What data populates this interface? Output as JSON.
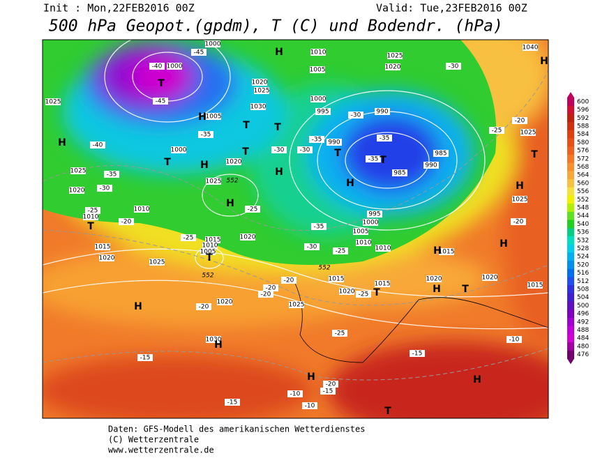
{
  "header": {
    "init": "Init : Mon,22FEB2016 00Z",
    "valid": "Valid: Tue,23FEB2016 00Z",
    "title": "500 hPa Geopot.(gpdm), T (C) und Bodendr. (hPa)"
  },
  "footer": {
    "source": "Daten: GFS-Modell des amerikanischen Wetterdienstes",
    "copyright": "(C) Wetterzentrale",
    "url": "www.wetterzentrale.de"
  },
  "colorbar": {
    "labels": [
      "600",
      "596",
      "592",
      "588",
      "584",
      "580",
      "576",
      "572",
      "568",
      "564",
      "560",
      "556",
      "552",
      "548",
      "544",
      "540",
      "536",
      "532",
      "528",
      "524",
      "520",
      "516",
      "512",
      "508",
      "504",
      "500",
      "496",
      "492",
      "488",
      "484",
      "480",
      "476"
    ]
  },
  "map": {
    "pressure_labels": [
      "1000",
      "1000",
      "1010",
      "1025",
      "1020",
      "1040",
      "1005",
      "1020",
      "1025",
      "1030",
      "1000",
      "995",
      "990",
      "1025",
      "1005",
      "1025",
      "990",
      "985",
      "990",
      "985",
      "1000",
      "1020",
      "1025",
      "1025",
      "1020",
      "1010",
      "1010",
      "1015",
      "1020",
      "1020",
      "1015",
      "1010",
      "1005",
      "995",
      "1000",
      "1005",
      "1010",
      "1010",
      "1015",
      "1025",
      "1015",
      "1020",
      "1015",
      "1020",
      "1020",
      "1015",
      "1020",
      "1025",
      "1030",
      "1025"
    ],
    "temperature_labels": [
      "-45",
      "-40",
      "-45",
      "-35",
      "-40",
      "-35",
      "-30",
      "-25",
      "-20",
      "-25",
      "-30",
      "-25",
      "-30",
      "-30",
      "-35",
      "-30",
      "-35",
      "-35",
      "-30",
      "-25",
      "-20",
      "-25",
      "-35",
      "-20",
      "-20",
      "-20",
      "-20",
      "-25",
      "-20",
      "-25",
      "-15",
      "-15",
      "-10",
      "-20",
      "-15",
      "-10",
      "-10",
      "-15"
    ],
    "height_labels": [
      "552",
      "552",
      "552"
    ],
    "centers": [
      "H",
      "H",
      "H",
      "T",
      "T",
      "H",
      "T",
      "T",
      "H",
      "H",
      "T",
      "T",
      "T",
      "H",
      "T",
      "T",
      "H",
      "H",
      "H",
      "H",
      "T",
      "H",
      "H",
      "H",
      "H",
      "T",
      "T",
      "H",
      "T"
    ]
  }
}
